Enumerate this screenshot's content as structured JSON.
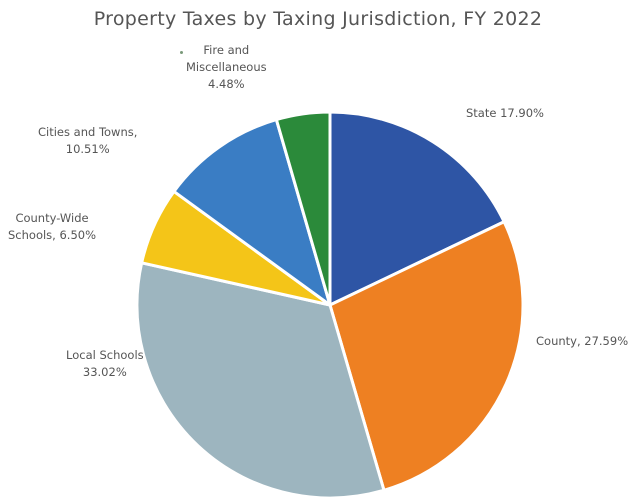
{
  "chart_data": {
    "type": "pie",
    "title": "Property Taxes by Taxing Jurisdiction, FY 2022",
    "start_angle_deg": 0,
    "direction": "clockwise",
    "slices": [
      {
        "name": "State",
        "label": "State 17.90%",
        "value": 17.9,
        "color": "#2e55a5"
      },
      {
        "name": "County",
        "label": "County, 27.59%",
        "value": 27.59,
        "color": "#ee8022"
      },
      {
        "name": "Local Schools",
        "label": "Local Schools 33.02%",
        "value": 33.02,
        "color": "#9db5bf"
      },
      {
        "name": "County-Wide Schools",
        "label": "County-Wide Schools 6.50%",
        "value": 6.5,
        "color": "#f4c518"
      },
      {
        "name": "Cities and Towns",
        "label": "Cities and Towns, 10.51%",
        "value": 10.51,
        "color": "#3a7dc4"
      },
      {
        "name": "Fire and Miscellaneous",
        "label": "Fire and Miscellaneous 4.48%",
        "value": 4.48,
        "color": "#2b8a3a"
      }
    ],
    "labels": {
      "state": [
        "State 17.90%"
      ],
      "county": [
        "County, 27.59%"
      ],
      "local_schools": [
        "Local Schools",
        "33.02%"
      ],
      "county_wide": [
        "County-Wide",
        "Schools, 6.50%"
      ],
      "cities": [
        "Cities and Towns,",
        "10.51%"
      ],
      "fire": [
        "Fire and",
        "Miscellaneous",
        "4.48%"
      ]
    }
  }
}
